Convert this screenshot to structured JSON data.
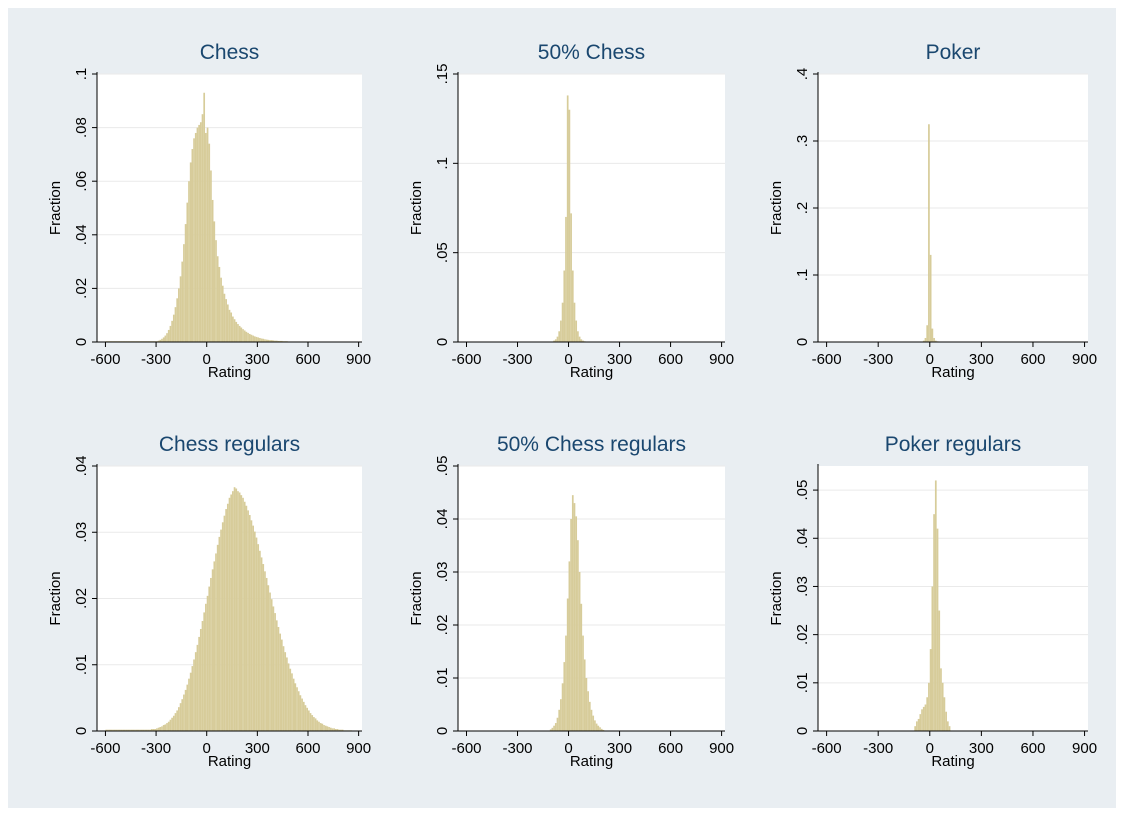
{
  "colors": {
    "outer_background": "#e9eef2",
    "plot_background": "#ffffff",
    "bar_fill": "#d7cc9a",
    "title_color": "#1a476f",
    "grid_color": "#eaeaea"
  },
  "chart_data": [
    {
      "type": "bar",
      "title": "Chess",
      "xlabel": "Rating",
      "ylabel": "Fraction",
      "xlim": [
        -650,
        920
      ],
      "ylim": [
        0,
        0.1
      ],
      "xticks": [
        -600,
        -300,
        0,
        300,
        600,
        900
      ],
      "xtick_labels": [
        "-600",
        "-300",
        "0",
        "300",
        "600",
        "900"
      ],
      "yticks": [
        0,
        0.02,
        0.04,
        0.06,
        0.08,
        0.1
      ],
      "ytick_labels": [
        "0",
        ".02",
        ".04",
        ".06",
        ".08",
        ".1"
      ],
      "grid": true,
      "bin_width": 10,
      "x": [
        -600,
        -590,
        -580,
        -570,
        -560,
        -550,
        -540,
        -530,
        -520,
        -510,
        -500,
        -490,
        -480,
        -470,
        -460,
        -450,
        -440,
        -430,
        -420,
        -410,
        -400,
        -390,
        -380,
        -370,
        -360,
        -350,
        -340,
        -330,
        -320,
        -310,
        -300,
        -290,
        -280,
        -270,
        -260,
        -250,
        -240,
        -230,
        -220,
        -210,
        -200,
        -190,
        -180,
        -170,
        -160,
        -150,
        -140,
        -130,
        -120,
        -110,
        -100,
        -90,
        -80,
        -70,
        -60,
        -50,
        -40,
        -30,
        -20,
        -10,
        0,
        10,
        20,
        30,
        40,
        50,
        60,
        70,
        80,
        90,
        100,
        110,
        120,
        130,
        140,
        150,
        160,
        170,
        180,
        190,
        200,
        210,
        220,
        230,
        240,
        250,
        260,
        270,
        280,
        290,
        300,
        310,
        320,
        330,
        340,
        350,
        360,
        370,
        380,
        390,
        400,
        410,
        420,
        430,
        440,
        450,
        460,
        470,
        480,
        490,
        500,
        510,
        520,
        530,
        540,
        550,
        560,
        570,
        580,
        590,
        600,
        610,
        620,
        630,
        640,
        650,
        660,
        670,
        680,
        690,
        700,
        710,
        720,
        730,
        740,
        750,
        760,
        770,
        780,
        790,
        800,
        810,
        820,
        830,
        840,
        850
      ],
      "values": [
        0.0003,
        0.0003,
        0.0003,
        0.0003,
        0.0003,
        0.0003,
        0.0003,
        0.0003,
        0.0003,
        0.0003,
        0.0003,
        0.0003,
        0.0003,
        0.0003,
        0.0003,
        0.0003,
        0.0003,
        0.0003,
        0.0003,
        0.0003,
        0.0003,
        0.0003,
        0.0003,
        0.0003,
        0.0003,
        0.0003,
        0.0003,
        0.0003,
        0.0003,
        0.0003,
        0.0003,
        0.0005,
        0.0008,
        0.0012,
        0.0017,
        0.0024,
        0.0033,
        0.0045,
        0.006,
        0.0079,
        0.0102,
        0.013,
        0.0163,
        0.02,
        0.0245,
        0.03,
        0.0365,
        0.044,
        0.052,
        0.06,
        0.067,
        0.072,
        0.076,
        0.078,
        0.08,
        0.081,
        0.082,
        0.085,
        0.093,
        0.078,
        0.08,
        0.074,
        0.064,
        0.053,
        0.045,
        0.038,
        0.032,
        0.028,
        0.024,
        0.021,
        0.018,
        0.016,
        0.014,
        0.012,
        0.011,
        0.0095,
        0.0085,
        0.0075,
        0.0067,
        0.006,
        0.0054,
        0.0048,
        0.0043,
        0.0038,
        0.0034,
        0.003,
        0.0027,
        0.0024,
        0.0021,
        0.0019,
        0.0017,
        0.0015,
        0.0013,
        0.0012,
        0.001,
        0.0009,
        0.0008,
        0.0007,
        0.0007,
        0.0006,
        0.0005,
        0.0005,
        0.0004,
        0.0004,
        0.0004,
        0.0003,
        0.0003,
        0.0003,
        0.0002,
        0.0002,
        0.0002,
        0.0002,
        0.0002,
        0.0002,
        0.0002,
        0.0002,
        0.0002,
        0.0002,
        0.0002,
        0.0002,
        0.0002,
        0.0001,
        0.0001,
        0.0001,
        0.0001,
        0.0001,
        0.0001,
        0.0001,
        0.0001,
        0.0001,
        0.0001,
        0.0001,
        0.0001,
        0.0001,
        0.0001,
        0.0001,
        0.0001,
        0.0001,
        0.0001,
        0.0001,
        0.0001,
        0.0001,
        0.0001,
        0.0001,
        0.0001,
        0.0001
      ]
    },
    {
      "type": "bar",
      "title": "50% Chess",
      "xlabel": "Rating",
      "ylabel": "Fraction",
      "xlim": [
        -650,
        920
      ],
      "ylim": [
        0,
        0.15
      ],
      "xticks": [
        -600,
        -300,
        0,
        300,
        600,
        900
      ],
      "xtick_labels": [
        "-600",
        "-300",
        "0",
        "300",
        "600",
        "900"
      ],
      "yticks": [
        0,
        0.05,
        0.1,
        0.15
      ],
      "ytick_labels": [
        "0",
        ".05",
        ".1",
        ".15"
      ],
      "grid": true,
      "bin_width": 10,
      "x": [
        -100,
        -90,
        -80,
        -70,
        -60,
        -50,
        -40,
        -30,
        -20,
        -10,
        0,
        10,
        20,
        30,
        40,
        50,
        60,
        70,
        80,
        90,
        100,
        110
      ],
      "values": [
        0.0003,
        0.0008,
        0.0015,
        0.003,
        0.006,
        0.012,
        0.022,
        0.04,
        0.07,
        0.138,
        0.13,
        0.072,
        0.04,
        0.022,
        0.012,
        0.006,
        0.003,
        0.0015,
        0.0008,
        0.0004,
        0.0002,
        0.0001
      ]
    },
    {
      "type": "bar",
      "title": "Poker",
      "xlabel": "Rating",
      "ylabel": "Fraction",
      "xlim": [
        -650,
        920
      ],
      "ylim": [
        0,
        0.4
      ],
      "xticks": [
        -600,
        -300,
        0,
        300,
        600,
        900
      ],
      "xtick_labels": [
        "-600",
        "-300",
        "0",
        "300",
        "600",
        "900"
      ],
      "yticks": [
        0,
        0.1,
        0.2,
        0.3,
        0.4
      ],
      "ytick_labels": [
        "0",
        ".1",
        ".2",
        ".3",
        ".4"
      ],
      "grid": true,
      "bin_width": 10,
      "x": [
        -40,
        -30,
        -20,
        -10,
        0,
        10,
        20,
        30,
        40
      ],
      "values": [
        0.002,
        0.006,
        0.025,
        0.325,
        0.13,
        0.02,
        0.006,
        0.002,
        0.001
      ]
    },
    {
      "type": "bar",
      "title": "Chess regulars",
      "xlabel": "Rating",
      "ylabel": "Fraction",
      "xlim": [
        -650,
        920
      ],
      "ylim": [
        0,
        0.04
      ],
      "xticks": [
        -600,
        -300,
        0,
        300,
        600,
        900
      ],
      "xtick_labels": [
        "-600",
        "-300",
        "0",
        "300",
        "600",
        "900"
      ],
      "yticks": [
        0,
        0.01,
        0.02,
        0.03,
        0.04
      ],
      "ytick_labels": [
        "0",
        ".01",
        ".02",
        ".03",
        ".04"
      ],
      "grid": true,
      "bin_width": 10,
      "x": [
        -600,
        -590,
        -580,
        -570,
        -560,
        -550,
        -540,
        -530,
        -520,
        -510,
        -500,
        -490,
        -480,
        -470,
        -460,
        -450,
        -440,
        -430,
        -420,
        -410,
        -400,
        -390,
        -380,
        -370,
        -360,
        -350,
        -340,
        -330,
        -320,
        -310,
        -300,
        -290,
        -280,
        -270,
        -260,
        -250,
        -240,
        -230,
        -220,
        -210,
        -200,
        -190,
        -180,
        -170,
        -160,
        -150,
        -140,
        -130,
        -120,
        -110,
        -100,
        -90,
        -80,
        -70,
        -60,
        -50,
        -40,
        -30,
        -20,
        -10,
        0,
        10,
        20,
        30,
        40,
        50,
        60,
        70,
        80,
        90,
        100,
        110,
        120,
        130,
        140,
        150,
        160,
        170,
        180,
        190,
        200,
        210,
        220,
        230,
        240,
        250,
        260,
        270,
        280,
        290,
        300,
        310,
        320,
        330,
        340,
        350,
        360,
        370,
        380,
        390,
        400,
        410,
        420,
        430,
        440,
        450,
        460,
        470,
        480,
        490,
        500,
        510,
        520,
        530,
        540,
        550,
        560,
        570,
        580,
        590,
        600,
        610,
        620,
        630,
        640,
        650,
        660,
        670,
        680,
        690,
        700,
        710,
        720,
        730,
        740,
        750,
        760,
        770,
        780,
        790,
        800,
        810,
        820,
        830,
        840,
        850
      ],
      "values": [
        0.0002,
        0.0002,
        0.0002,
        0.0002,
        0.0002,
        0.0002,
        0.0002,
        0.0002,
        0.0002,
        0.0002,
        0.0002,
        0.0002,
        0.0002,
        0.0002,
        0.0002,
        0.0002,
        0.0002,
        0.0002,
        0.0002,
        0.0002,
        0.0002,
        0.0002,
        0.0002,
        0.0002,
        0.0002,
        0.0002,
        0.0002,
        0.0003,
        0.0003,
        0.0003,
        0.0004,
        0.0005,
        0.0006,
        0.0007,
        0.0009,
        0.001,
        0.0012,
        0.0014,
        0.0017,
        0.002,
        0.0023,
        0.0027,
        0.0031,
        0.0036,
        0.0042,
        0.0048,
        0.0055,
        0.0062,
        0.007,
        0.0079,
        0.0088,
        0.0098,
        0.0108,
        0.0119,
        0.013,
        0.0142,
        0.0154,
        0.0166,
        0.0179,
        0.0192,
        0.0204,
        0.0218,
        0.0231,
        0.0244,
        0.0256,
        0.0268,
        0.0281,
        0.0293,
        0.0304,
        0.0315,
        0.0325,
        0.0335,
        0.0343,
        0.0352,
        0.0357,
        0.0362,
        0.0368,
        0.0366,
        0.0362,
        0.036,
        0.0356,
        0.0352,
        0.0346,
        0.034,
        0.0333,
        0.0326,
        0.0318,
        0.031,
        0.0301,
        0.0292,
        0.0282,
        0.0272,
        0.0262,
        0.0252,
        0.0241,
        0.0231,
        0.022,
        0.0209,
        0.0199,
        0.0188,
        0.0178,
        0.0167,
        0.0157,
        0.0147,
        0.0138,
        0.0128,
        0.0119,
        0.0111,
        0.0102,
        0.0094,
        0.0087,
        0.0079,
        0.0072,
        0.0066,
        0.006,
        0.0054,
        0.0049,
        0.0044,
        0.0039,
        0.0035,
        0.0031,
        0.0027,
        0.0024,
        0.0021,
        0.0019,
        0.0016,
        0.0014,
        0.0012,
        0.0011,
        0.0009,
        0.0008,
        0.0007,
        0.0006,
        0.0005,
        0.0004,
        0.0004,
        0.0003,
        0.0003,
        0.0002,
        0.0002,
        0.0002,
        0.0001,
        0.0001,
        0.0001,
        0.0001,
        0.0001
      ]
    },
    {
      "type": "bar",
      "title": "50% Chess regulars",
      "xlabel": "Rating",
      "ylabel": "Fraction",
      "xlim": [
        -650,
        920
      ],
      "ylim": [
        0,
        0.05
      ],
      "xticks": [
        -600,
        -300,
        0,
        300,
        600,
        900
      ],
      "xtick_labels": [
        "-600",
        "-300",
        "0",
        "300",
        "600",
        "900"
      ],
      "yticks": [
        0,
        0.01,
        0.02,
        0.03,
        0.04,
        0.05
      ],
      "ytick_labels": [
        "0",
        ".01",
        ".02",
        ".03",
        ".04",
        ".05"
      ],
      "grid": true,
      "bin_width": 10,
      "x": [
        -110,
        -100,
        -90,
        -80,
        -70,
        -60,
        -50,
        -40,
        -30,
        -20,
        -10,
        0,
        10,
        20,
        30,
        40,
        50,
        60,
        70,
        80,
        90,
        100,
        110,
        120,
        130,
        140,
        150,
        160,
        170,
        180,
        190,
        200
      ],
      "values": [
        0.0003,
        0.0006,
        0.001,
        0.0015,
        0.0025,
        0.004,
        0.006,
        0.009,
        0.013,
        0.018,
        0.025,
        0.032,
        0.04,
        0.0445,
        0.043,
        0.0405,
        0.036,
        0.03,
        0.024,
        0.018,
        0.0135,
        0.01,
        0.0075,
        0.0055,
        0.004,
        0.0029,
        0.002,
        0.0014,
        0.001,
        0.0007,
        0.0004,
        0.0002
      ]
    },
    {
      "type": "bar",
      "title": "Poker regulars",
      "xlabel": "Rating",
      "ylabel": "Fraction",
      "xlim": [
        -650,
        920
      ],
      "ylim": [
        0,
        0.055
      ],
      "xticks": [
        -600,
        -300,
        0,
        300,
        600,
        900
      ],
      "xtick_labels": [
        "-600",
        "-300",
        "0",
        "300",
        "600",
        "900"
      ],
      "yticks": [
        0,
        0.01,
        0.02,
        0.03,
        0.04,
        0.05
      ],
      "ytick_labels": [
        "0",
        ".01",
        ".02",
        ".03",
        ".04",
        ".05"
      ],
      "grid": true,
      "bin_width": 10,
      "x": [
        -90,
        -80,
        -70,
        -60,
        -50,
        -40,
        -30,
        -20,
        -10,
        0,
        10,
        20,
        30,
        40,
        50,
        60,
        70,
        80,
        90,
        100,
        110
      ],
      "values": [
        0.001,
        0.002,
        0.0025,
        0.0035,
        0.0045,
        0.005,
        0.0055,
        0.007,
        0.01,
        0.017,
        0.03,
        0.045,
        0.052,
        0.042,
        0.025,
        0.013,
        0.01,
        0.007,
        0.004,
        0.002,
        0.001
      ]
    }
  ]
}
